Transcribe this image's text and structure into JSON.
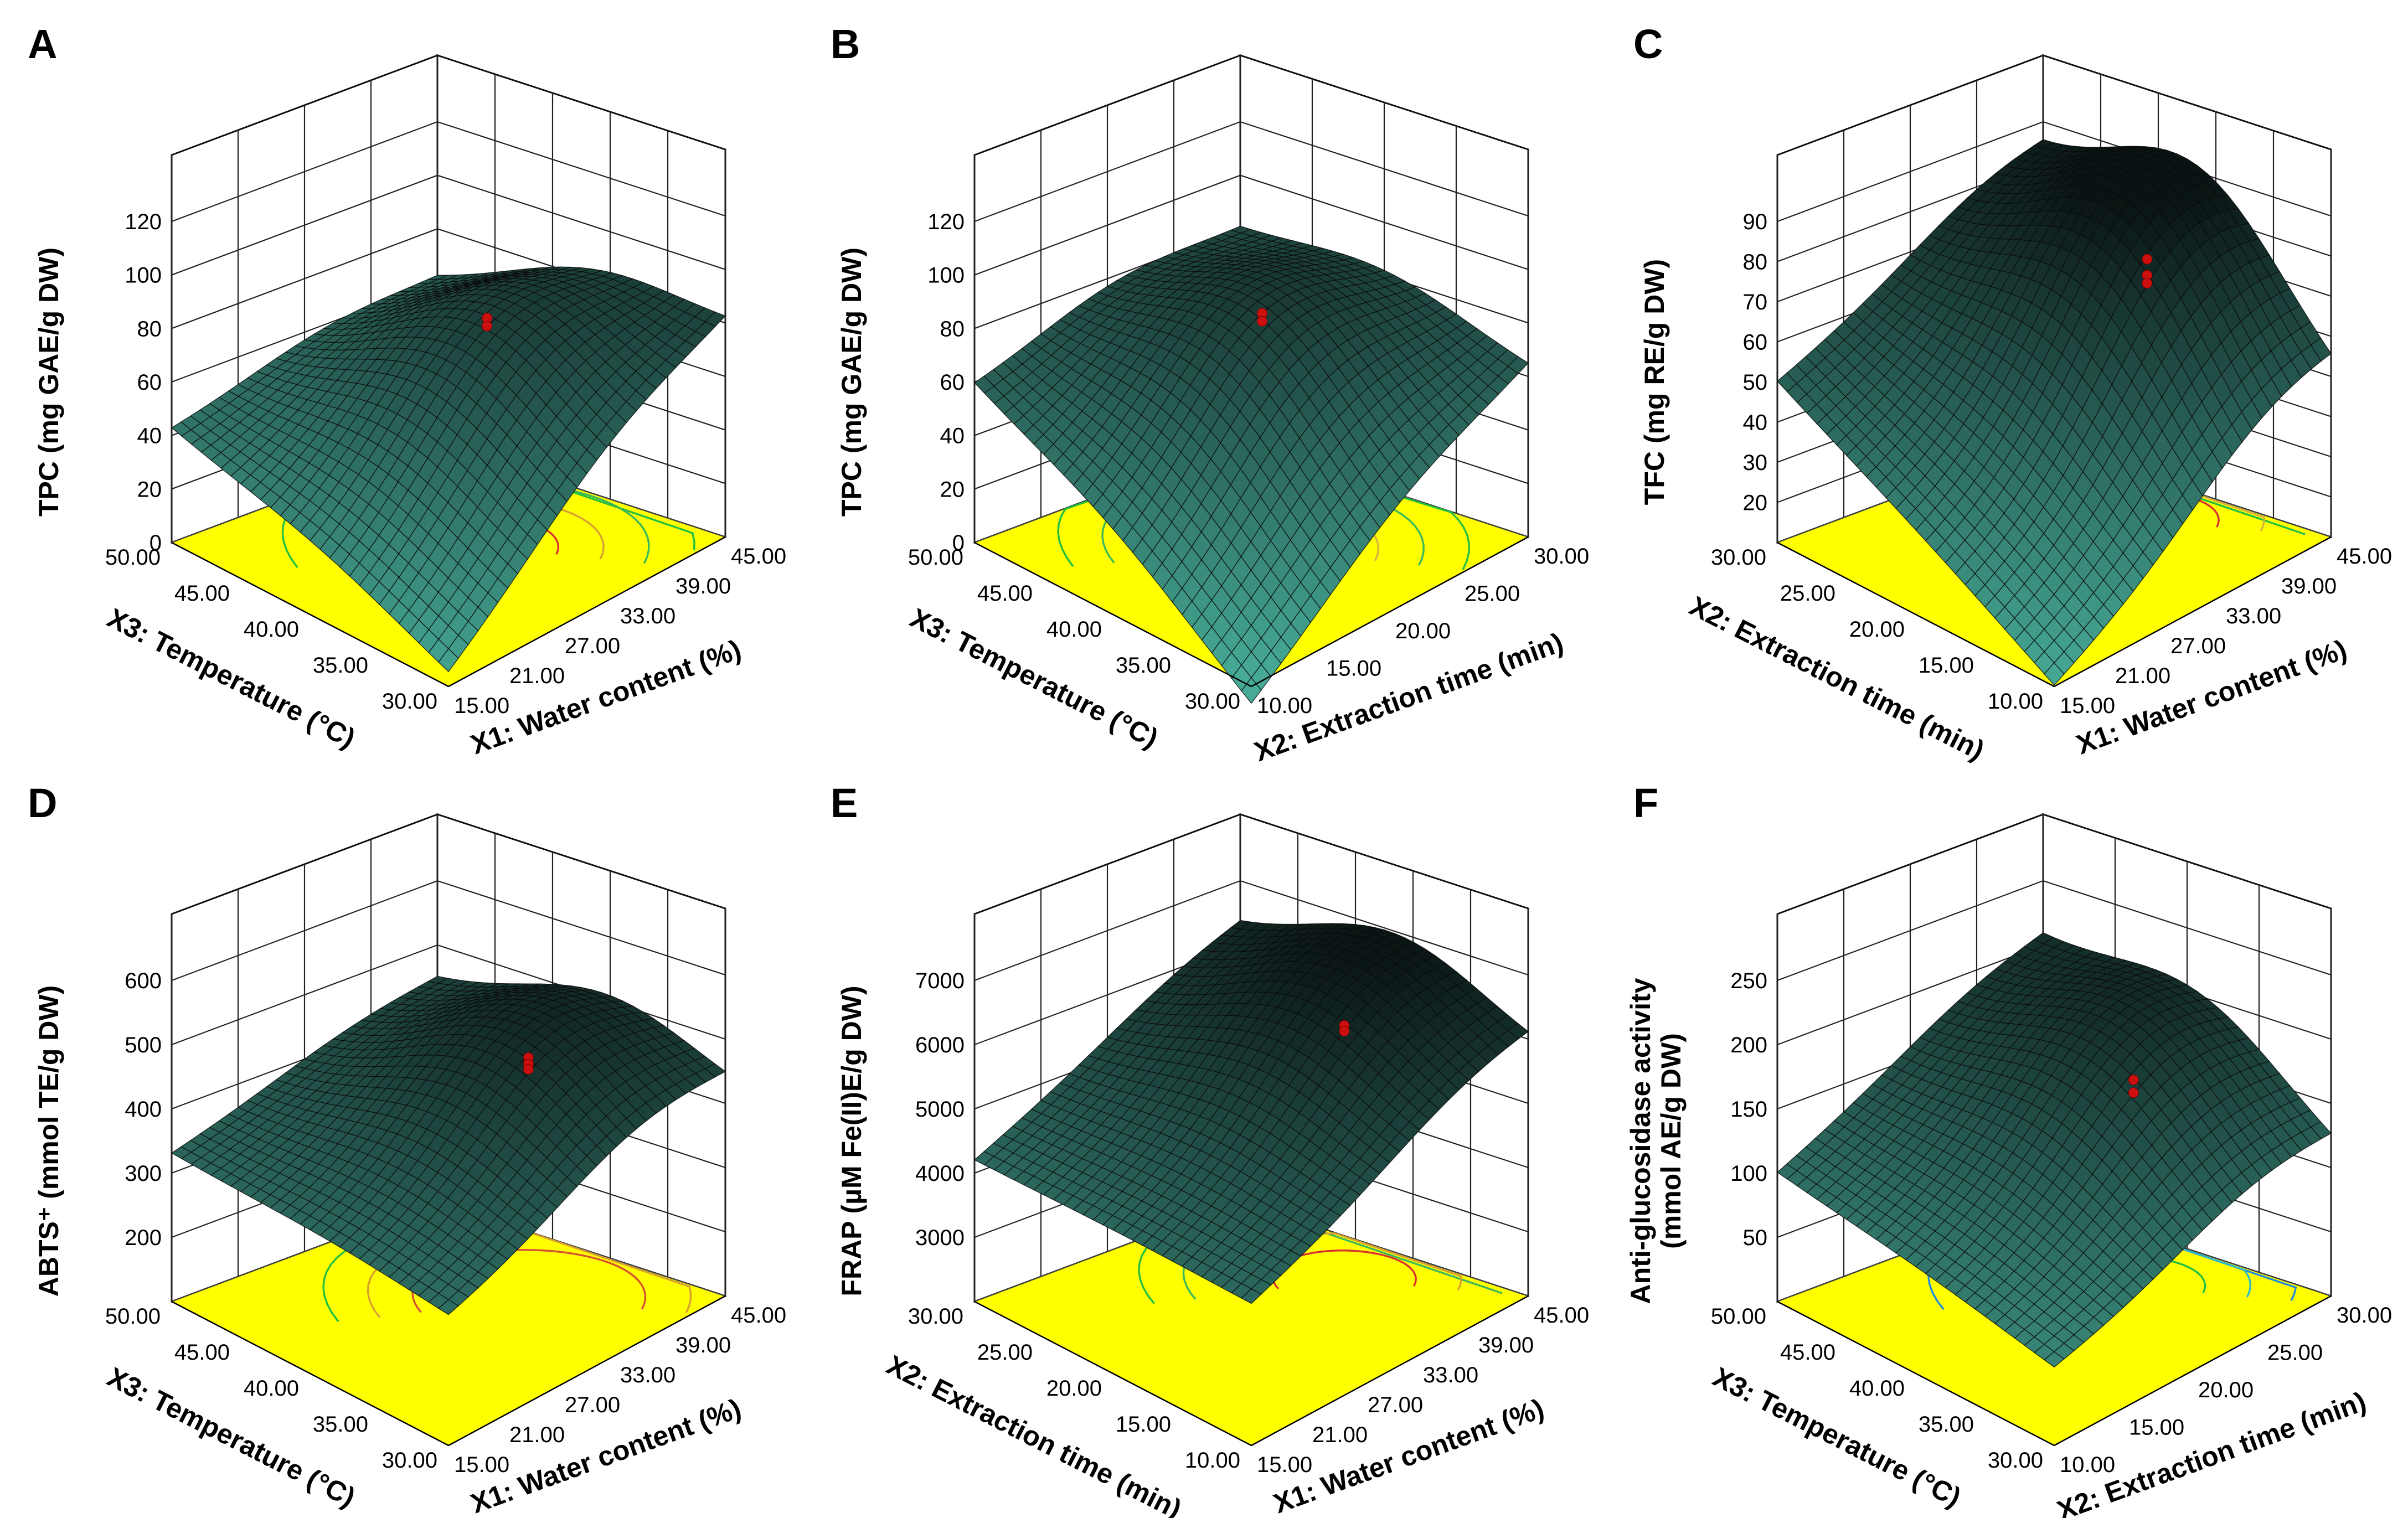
{
  "chart_data": [
    {
      "panel": "A",
      "type": "surface",
      "zlabel": "TPC (mg GAE/g DW)",
      "zticks": [
        "0",
        "20",
        "40",
        "60",
        "80",
        "100",
        "120"
      ],
      "xlabel": "X1: Water content (%)",
      "xticks": [
        "15.00",
        "21.00",
        "27.00",
        "33.00",
        "39.00",
        "45.00"
      ],
      "ylabel": "X3: Temperature (°C)",
      "yticks": [
        "30.00",
        "35.00",
        "40.00",
        "45.00",
        "50.00"
      ],
      "zlim": [
        0,
        120
      ],
      "surface": {
        "corner_left": 42,
        "corner_right": 78,
        "corner_back": 60,
        "corner_front": 4,
        "peak": 85,
        "peak_u": 0.55,
        "peak_v": 0.6
      },
      "design_points": [
        85,
        82
      ],
      "contour_colors": [
        "#22c040",
        "#3ab85a",
        "#d8a030",
        "#d83030"
      ]
    },
    {
      "panel": "B",
      "type": "surface",
      "zlabel": "TPC (mg GAE/g DW)",
      "zticks": [
        "0",
        "20",
        "40",
        "60",
        "80",
        "100",
        "120"
      ],
      "xlabel": "X2: Extraction time (min)",
      "xticks": [
        "10.00",
        "15.00",
        "20.00",
        "25.00",
        "30.00"
      ],
      "ylabel": "X3: Temperature (°C)",
      "yticks": [
        "30.00",
        "35.00",
        "40.00",
        "45.00",
        "50.00"
      ],
      "zlim": [
        0,
        120
      ],
      "surface": {
        "corner_left": 58,
        "corner_right": 62,
        "corner_back": 78,
        "corner_front": -8,
        "peak": 87,
        "peak_u": 0.5,
        "peak_v": 0.55
      },
      "design_points": [
        87,
        84
      ],
      "contour_colors": [
        "#22c040",
        "#3ab85a",
        "#d8b040",
        "#e0a060"
      ]
    },
    {
      "panel": "C",
      "type": "surface",
      "zlabel": "TFC (mg RE/g DW)",
      "zticks": [
        "20",
        "30",
        "40",
        "50",
        "60",
        "70",
        "80",
        "90"
      ],
      "xlabel": "X1: Water content (%)",
      "xticks": [
        "15.00",
        "21.00",
        "27.00",
        "33.00",
        "39.00",
        "45.00"
      ],
      "ylabel": "X2: Extraction time (min)",
      "yticks": [
        "10.00",
        "15.00",
        "20.00",
        "25.00",
        "30.00"
      ],
      "zlim": [
        10,
        90
      ],
      "surface": {
        "corner_left": 50,
        "corner_right": 46,
        "corner_back": 80,
        "corner_front": 10,
        "peak": 92,
        "peak_u": 0.55,
        "peak_v": 0.8
      },
      "design_points": [
        75,
        71,
        69
      ],
      "contour_colors": [
        "#22c040",
        "#22c040",
        "#d8b040",
        "#d83030"
      ]
    },
    {
      "panel": "D",
      "type": "surface",
      "zlabel": "ABTS⁺ (mmol TE/g DW)",
      "zticks": [
        "200",
        "300",
        "400",
        "500",
        "600"
      ],
      "xlabel": "X1: Water content (%)",
      "xticks": [
        "15.00",
        "21.00",
        "27.00",
        "33.00",
        "39.00",
        "45.00"
      ],
      "ylabel": "X3: Temperature (°C)",
      "yticks": [
        "30.00",
        "35.00",
        "40.00",
        "45.00",
        "50.00"
      ],
      "zlim": [
        100,
        600
      ],
      "surface": {
        "corner_left": 330,
        "corner_right": 415,
        "corner_back": 440,
        "corner_front": 300,
        "peak": 530,
        "peak_u": 0.6,
        "peak_v": 0.7
      },
      "design_points": [
        473,
        463,
        455
      ],
      "contour_colors": [
        "#22c040",
        "#d8a030",
        "#d85030"
      ]
    },
    {
      "panel": "E",
      "type": "surface",
      "zlabel": "FRAP (µM Fe(II)E/g DW)",
      "zticks": [
        "3000",
        "4000",
        "5000",
        "6000",
        "7000"
      ],
      "xlabel": "X1: Water content (%)",
      "xticks": [
        "15.00",
        "21.00",
        "27.00",
        "33.00",
        "39.00",
        "45.00"
      ],
      "ylabel": "X2: Extraction time (min)",
      "yticks": [
        "10.00",
        "15.00",
        "20.00",
        "25.00",
        "30.00"
      ],
      "zlim": [
        2000,
        7000
      ],
      "surface": {
        "corner_left": 4200,
        "corner_right": 5800,
        "corner_back": 6200,
        "corner_front": 4200,
        "peak": 6850,
        "peak_u": 0.55,
        "peak_v": 0.8
      },
      "design_points": [
        5950,
        5860
      ],
      "contour_colors": [
        "#22c040",
        "#3ab85a",
        "#d8a030",
        "#d83030"
      ]
    },
    {
      "panel": "F",
      "type": "surface",
      "zlabel": "Anti-glucosidase activity (mmol AE/g DW)",
      "zlabel_lines": [
        "Anti-glucosidase activity",
        "(mmol AE/g DW)"
      ],
      "zticks": [
        "50",
        "100",
        "150",
        "200",
        "250"
      ],
      "xlabel": "X2: Extraction time (min)",
      "xticks": [
        "10.00",
        "15.00",
        "20.00",
        "25.00",
        "30.00"
      ],
      "ylabel": "X3: Temperature (°C)",
      "yticks": [
        "30.00",
        "35.00",
        "40.00",
        "45.00",
        "50.00"
      ],
      "zlim": [
        0,
        250
      ],
      "surface": {
        "corner_left": 100,
        "corner_right": 110,
        "corner_back": 200,
        "corner_front": 60,
        "peak": 205,
        "peak_u": 0.55,
        "peak_v": 0.75
      },
      "design_points": [
        160,
        150
      ],
      "contour_colors": [
        "#1e8ae0",
        "#1e8ae0",
        "#28b8d0",
        "#22c040"
      ]
    }
  ]
}
